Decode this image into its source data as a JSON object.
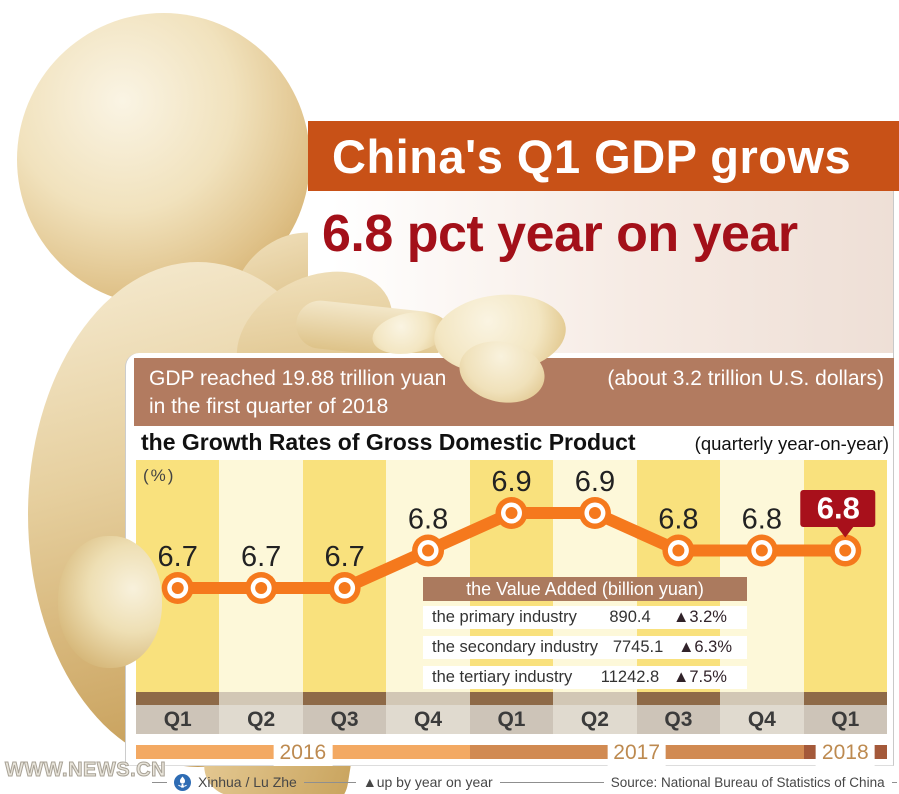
{
  "header": {
    "title_line1": "China's Q1 GDP grows",
    "title_line2": "6.8 pct year on year"
  },
  "subtitle": {
    "left_line1": "GDP reached 19.88 trillion yuan",
    "left_line2": "in the first quarter of 2018",
    "right": "(about 3.2 trillion U.S. dollars)"
  },
  "chart_data": {
    "type": "line",
    "title": "the Growth Rates of Gross Domestic Product",
    "subtitle": "(quarterly year-on-year)",
    "unit": "(%)",
    "categories": [
      "Q1",
      "Q2",
      "Q3",
      "Q4",
      "Q1",
      "Q2",
      "Q3",
      "Q4",
      "Q1"
    ],
    "values": [
      6.7,
      6.7,
      6.7,
      6.8,
      6.9,
      6.9,
      6.8,
      6.8,
      6.8
    ],
    "years": [
      {
        "label": "2016",
        "quarters": 4
      },
      {
        "label": "2017",
        "quarters": 4
      },
      {
        "label": "2018",
        "quarters": 1
      }
    ],
    "highlight_index": 8,
    "highlight_value_label": "6.8",
    "ylim": [
      6.5,
      7.05
    ],
    "grid": false,
    "legend_position": "none"
  },
  "value_table": {
    "header": "the Value Added (billion yuan)",
    "rows": [
      {
        "label": "the primary industry",
        "value": "890.4",
        "change": "▲3.2%"
      },
      {
        "label": "the secondary industry",
        "value": "7745.1",
        "change": "▲6.3%"
      },
      {
        "label": "the tertiary industry",
        "value": "11242.8",
        "change": "▲7.5%"
      }
    ]
  },
  "footer": {
    "watermark": "WWW.NEWS.CN",
    "credit": "Xinhua / Lu Zhe",
    "legend": "▲up by year on year",
    "source": "Source: National Bureau of Statistics of China"
  },
  "colors": {
    "title_bar": "#c85117",
    "headline_red": "#a31019",
    "subtitle_box": "#b27b60",
    "table_header": "#ab7a5e",
    "line": "#f5791d",
    "marker": "#f5791d",
    "highlight_badge": "#a8101b",
    "band_dark": "#f9e17d",
    "band_light": "#fdf8d9",
    "axis_strip_dark": "#8e6a48",
    "axis_strip_light": "#d2c7b5",
    "q_bg_dark": "#cdc4b8",
    "q_bg_light": "#e0dacf",
    "year_bar": [
      "#f3a963",
      "#d18a52",
      "#a4593a"
    ],
    "year_text": "#bd8a50",
    "label_text": "#222222",
    "xinhua_blue": "#2e6cb4"
  }
}
